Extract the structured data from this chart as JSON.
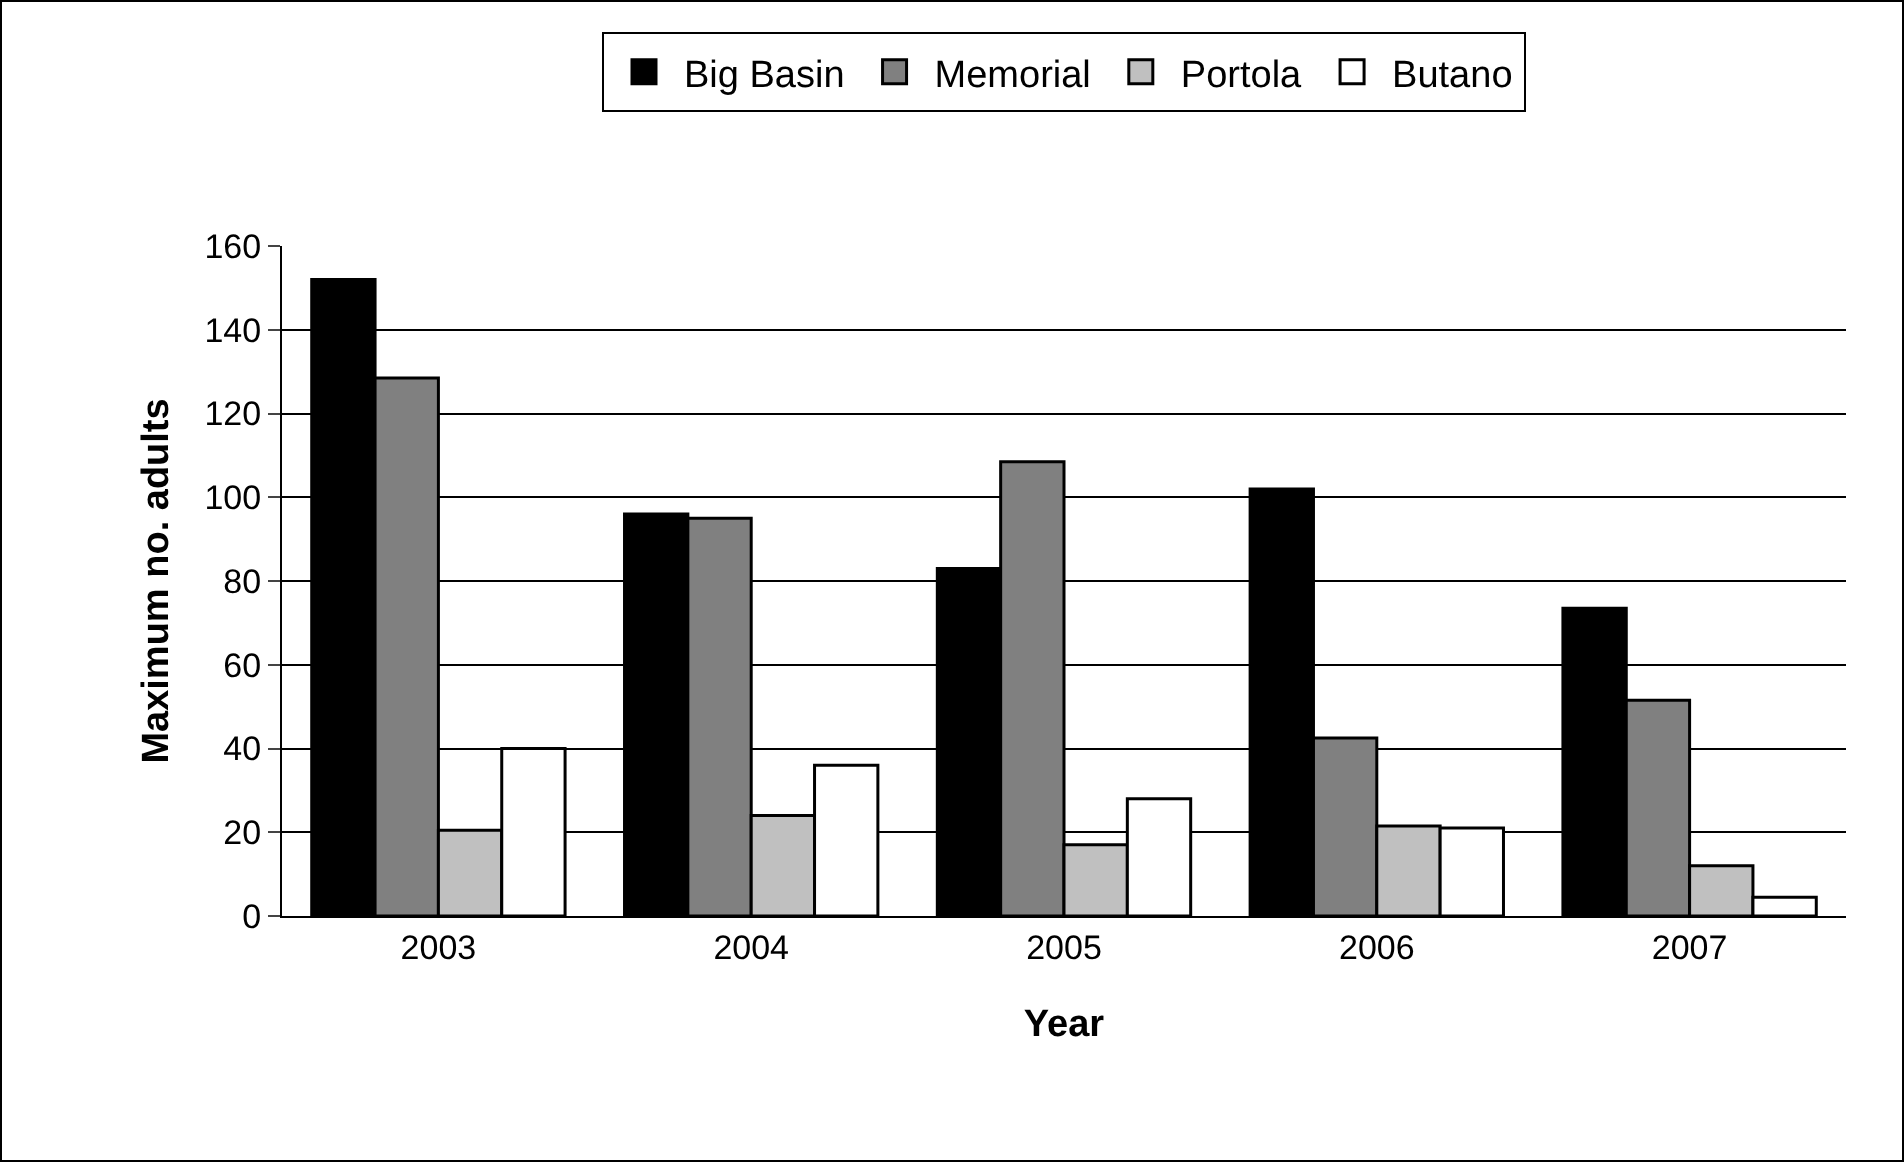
{
  "chart_data": {
    "type": "bar",
    "xlabel": "Year",
    "ylabel": "Maximum no. adults",
    "categories": [
      "2003",
      "2004",
      "2005",
      "2006",
      "2007"
    ],
    "series": [
      {
        "name": "Big Basin",
        "color": "#000000",
        "values": [
          152,
          96,
          83,
          102,
          73.5
        ]
      },
      {
        "name": "Memorial",
        "color": "#808080",
        "values": [
          128.5,
          95,
          108.5,
          42.5,
          51.5
        ]
      },
      {
        "name": "Portola",
        "color": "#c0c0c0",
        "values": [
          20.5,
          24,
          17,
          21.5,
          12
        ]
      },
      {
        "name": "Butano",
        "color": "#ffffff",
        "values": [
          40,
          36,
          28,
          21,
          4.5
        ]
      }
    ],
    "ylim": [
      0,
      160
    ],
    "yticks": [
      0,
      20,
      40,
      60,
      80,
      100,
      120,
      140,
      160
    ],
    "grid": "y",
    "legend": "top"
  }
}
